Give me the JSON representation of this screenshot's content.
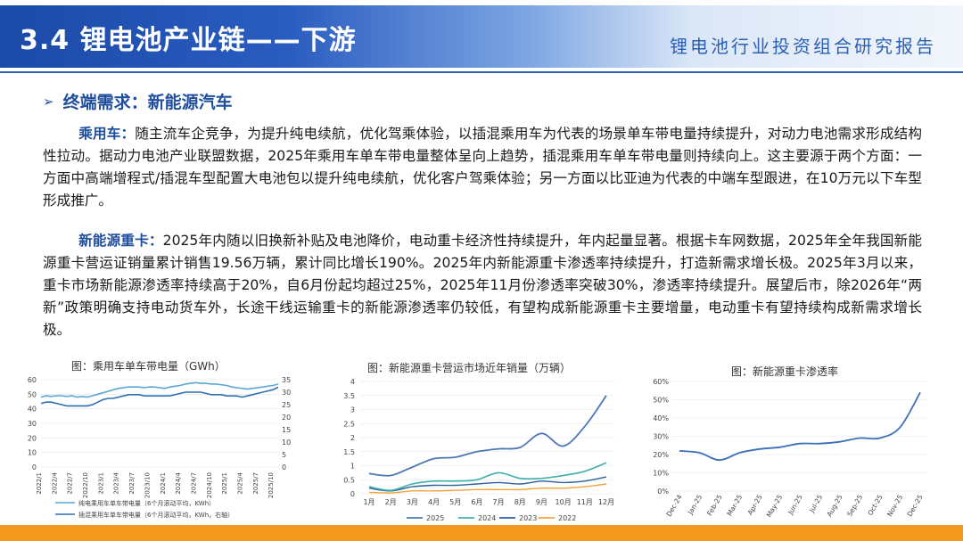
{
  "header": {
    "title": "3.4 锂电池产业链——下游",
    "right_label": "锂电池行业投资组合研究报告"
  },
  "section": {
    "bullet": "➢",
    "title": "终端需求：新能源汽车"
  },
  "para1": {
    "lead": "乘用车：",
    "text": "随主流车企竞争，为提升纯电续航，优化驾乘体验，以插混乘用车为代表的场景单车带电量持续提升，对动力电池需求形成结构性拉动。据动力电池产业联盟数据，2025年乘用车单车带电量整体呈向上趋势，插混乘用车单车带电量则持续向上。这主要源于两个方面：一方面中高端增程式/插混车型配置大电池包以提升纯电续航，优化客户驾乘体验；另一方面以比亚迪为代表的中端车型跟进，在10万元以下车型形成推广。"
  },
  "para2": {
    "lead": "新能源重卡：",
    "text": "2025年内随以旧换新补贴及电池降价，电动重卡经济性持续提升，年内起量显著。根据卡车网数据，2025年全年我国新能源重卡营运证销量累计销售19.56万辆，累计同比增长190%。2025年内新能源重卡渗透率持续提升，打造新需求增长极。2025年3月以来，重卡市场新能源渗透率持续高于20%，自6月份起均超过25%，2025年11月份渗透率突破30%，渗透率持续提升。展望后市，除2026年“两新”政策明确支持电动货车外，长途干线运输重卡的新能源渗透率仍较低，有望构成新能源重卡主要增量，电动重卡有望持续构成新需求增长极。"
  },
  "charts": [
    {
      "title": "图：乘用车单车带电量（GWh）",
      "left_ticks": [
        "0",
        "10",
        "20",
        "30",
        "40",
        "50",
        "60"
      ],
      "right_ticks": [
        "0",
        "5",
        "10",
        "15",
        "20",
        "25",
        "30",
        "35"
      ],
      "x_ticks": [
        "2022/1",
        "2022/4",
        "2022/7",
        "2022/10",
        "2023/1",
        "2023/4",
        "2023/7",
        "2023/10",
        "2024/1",
        "2024/4",
        "2024/7",
        "2024/10",
        "2025/1",
        "2025/4",
        "2025/7",
        "2025/10"
      ],
      "legend": [
        "纯电乘用车单车带电量（6个月滚动平均，KWh）",
        "插混乘用车单车带电量（6个月滚动平均，KWh，右轴）"
      ],
      "colors": [
        "#5aa7d6",
        "#2f6fb5"
      ]
    },
    {
      "title": "图：新能源重卡营运市场近年销量（万辆）",
      "y_ticks": [
        "0",
        "0.5",
        "1",
        "1.5",
        "2",
        "2.5",
        "3",
        "3.5",
        "4"
      ],
      "x_ticks": [
        "1月",
        "2月",
        "3月",
        "4月",
        "5月",
        "6月",
        "7月",
        "8月",
        "9月",
        "10月",
        "11月",
        "12月"
      ],
      "legend": [
        "2025",
        "2024",
        "2023",
        "2022"
      ],
      "colors": [
        "#4d78b8",
        "#3fb0aa",
        "#2c5fa0",
        "#f2a33c"
      ]
    },
    {
      "title": "图：新能源重卡渗透率",
      "y_ticks": [
        "0%",
        "10%",
        "20%",
        "30%",
        "40%",
        "50%",
        "60%"
      ],
      "x_ticks": [
        "Dec-24",
        "Jan-25",
        "Feb-25",
        "Mar-25",
        "Apr-25",
        "May-25",
        "Jun-25",
        "Jul-25",
        "Aug-25",
        "Sep-25",
        "Oct-25",
        "Nov-25",
        "Dec-25"
      ],
      "colors": [
        "#3b6fb8"
      ]
    }
  ],
  "chart_data": [
    {
      "type": "line",
      "x": [
        "2022/1",
        "2022/2",
        "2022/3",
        "2022/4",
        "2022/5",
        "2022/6",
        "2022/7",
        "2022/8",
        "2022/9",
        "2022/10",
        "2022/11",
        "2022/12",
        "2023/1",
        "2023/2",
        "2023/3",
        "2023/4",
        "2023/5",
        "2023/6",
        "2023/7",
        "2023/8",
        "2023/9",
        "2023/10",
        "2023/11",
        "2023/12",
        "2024/1",
        "2024/2",
        "2024/3",
        "2024/4",
        "2024/5",
        "2024/6",
        "2024/7",
        "2024/8",
        "2024/9",
        "2024/10",
        "2024/11",
        "2024/12",
        "2025/1",
        "2025/2",
        "2025/3",
        "2025/4",
        "2025/5",
        "2025/6",
        "2025/7",
        "2025/8",
        "2025/9",
        "2025/10",
        "2025/11"
      ],
      "series": [
        {
          "name": "纯电乘用车单车带电量（6个月滚动平均，KWh）",
          "axis": "left",
          "values": [
            48,
            49,
            48.5,
            49,
            49,
            48.5,
            49,
            48,
            48.5,
            48,
            49,
            50,
            51,
            52,
            53,
            54,
            54.5,
            55,
            55,
            55,
            54.5,
            55,
            55,
            54.5,
            54,
            55,
            55.5,
            56,
            57,
            57.5,
            58,
            57.5,
            57.5,
            57,
            57,
            56.5,
            56,
            55,
            54.5,
            54,
            53.5,
            54,
            54.5,
            55,
            55.5,
            56,
            57
          ]
        },
        {
          "name": "插混乘用车单车带电量（6个月滚动平均，KWh，右轴）",
          "axis": "right",
          "values": [
            25.5,
            26,
            26,
            25.5,
            25,
            24.5,
            24.5,
            24.5,
            24.5,
            24.5,
            25,
            26,
            27,
            27.5,
            27.5,
            28,
            28.5,
            29,
            29,
            29,
            28.5,
            28.5,
            28.5,
            28.5,
            28.5,
            28.5,
            29,
            29.5,
            30,
            30,
            30,
            30,
            29.5,
            29,
            29,
            29,
            28.5,
            28.5,
            28.5,
            28,
            28.5,
            29,
            29.5,
            30,
            30.5,
            31,
            32
          ]
        }
      ],
      "ylim_left": [
        0,
        60
      ],
      "ylim_right": [
        0,
        35
      ]
    },
    {
      "type": "line",
      "categories": [
        "1月",
        "2月",
        "3月",
        "4月",
        "5月",
        "6月",
        "7月",
        "8月",
        "9月",
        "10月",
        "11月",
        "12月"
      ],
      "series": [
        {
          "name": "2025",
          "values": [
            0.72,
            0.65,
            0.95,
            1.25,
            1.3,
            1.5,
            1.6,
            1.65,
            2.15,
            1.7,
            2.4,
            3.5
          ]
        },
        {
          "name": "2024",
          "values": [
            0.25,
            0.12,
            0.35,
            0.45,
            0.45,
            0.5,
            0.75,
            0.55,
            0.55,
            0.65,
            0.8,
            1.1
          ]
        },
        {
          "name": "2023",
          "values": [
            0.2,
            0.1,
            0.25,
            0.3,
            0.3,
            0.35,
            0.4,
            0.35,
            0.45,
            0.4,
            0.45,
            0.6
          ]
        },
        {
          "name": "2022",
          "values": [
            0.05,
            0.03,
            0.1,
            0.1,
            0.12,
            0.15,
            0.15,
            0.15,
            0.2,
            0.2,
            0.25,
            0.35
          ]
        }
      ],
      "ylim": [
        0,
        4
      ]
    },
    {
      "type": "line",
      "categories": [
        "Dec-24",
        "Jan-25",
        "Feb-25",
        "Mar-25",
        "Apr-25",
        "May-25",
        "Jun-25",
        "Jul-25",
        "Aug-25",
        "Sep-25",
        "Oct-25",
        "Nov-25",
        "Dec-25"
      ],
      "series": [
        {
          "name": "",
          "values": [
            22,
            21,
            17,
            21,
            23,
            24,
            26,
            26,
            27,
            29,
            29,
            35,
            54
          ]
        }
      ],
      "ylim": [
        0,
        60
      ]
    }
  ]
}
